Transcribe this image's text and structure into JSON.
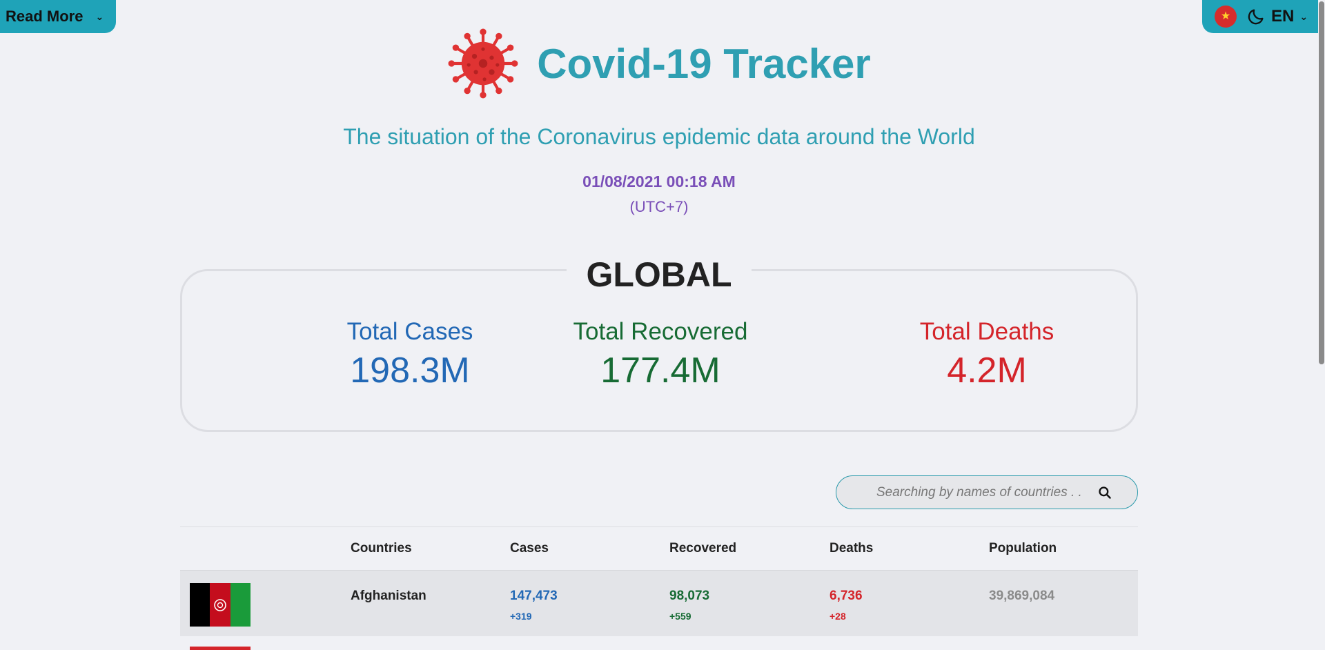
{
  "nav": {
    "read_more_label": "Read More",
    "language": "EN"
  },
  "header": {
    "title": "Covid-19 Tracker",
    "subtitle": "The situation of the Coronavirus epidemic data around the World",
    "datetime": "01/08/2021 00:18 AM",
    "timezone": "(UTC+7)"
  },
  "global": {
    "title": "GLOBAL",
    "total_cases_label": "Total Cases",
    "total_cases": "198.3M",
    "total_recovered_label": "Total Recovered",
    "total_recovered": "177.4M",
    "total_deaths_label": "Total Deaths",
    "total_deaths": "4.2M"
  },
  "search": {
    "placeholder": "Searching by names of countries . ."
  },
  "table": {
    "headers": {
      "countries": "Countries",
      "cases": "Cases",
      "recovered": "Recovered",
      "deaths": "Deaths",
      "population": "Population"
    },
    "rows": [
      {
        "country": "Afghanistan",
        "cases": "147,473",
        "cases_delta": "+319",
        "recovered": "98,073",
        "recovered_delta": "+559",
        "deaths": "6,736",
        "deaths_delta": "+28",
        "population": "39,869,084"
      }
    ]
  },
  "colors": {
    "accent": "#1fa3b8",
    "title": "#2f9fb2",
    "cases": "#2268b5",
    "recovered": "#176b34",
    "deaths": "#d4242a",
    "datetime": "#7a4fb8"
  },
  "icons": {
    "virus": "virus-icon",
    "moon": "moon-icon",
    "search": "search-icon",
    "chevron": "chevron-down-icon",
    "vietnam_flag": "vietnam-flag-icon",
    "afghanistan_flag": "afghanistan-flag-icon"
  }
}
